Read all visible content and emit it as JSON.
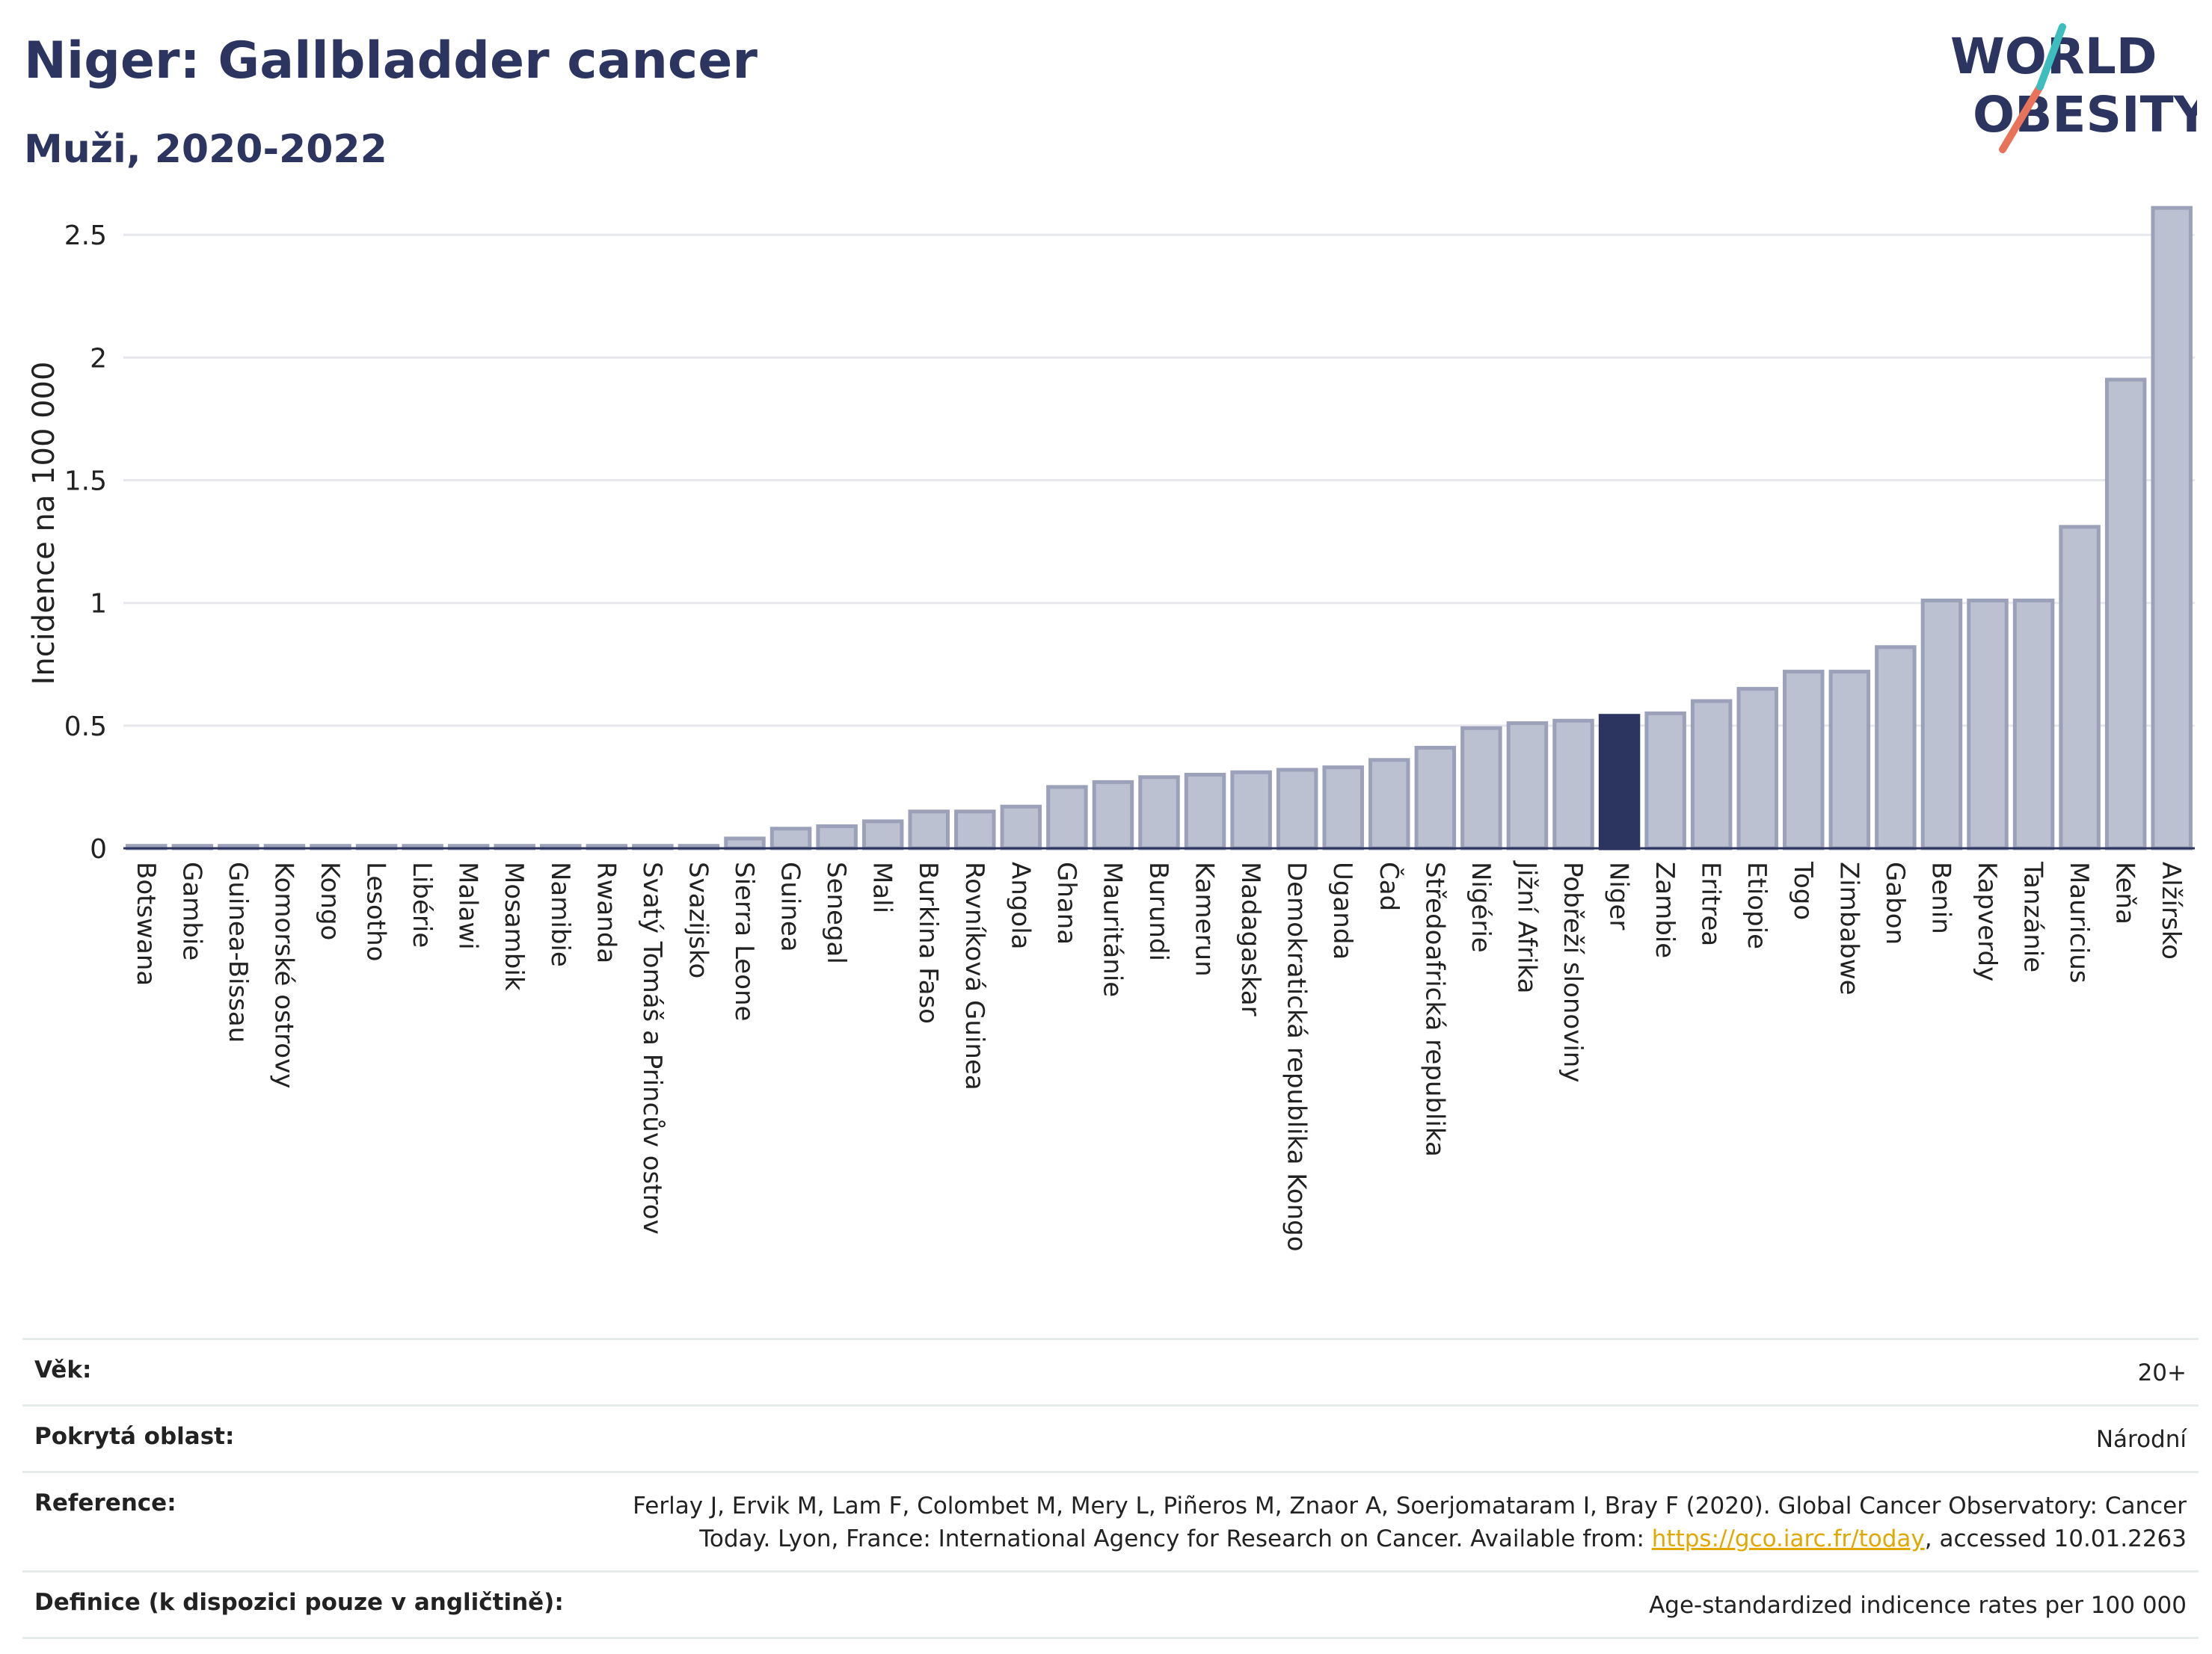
{
  "header": {
    "title": "Niger: Gallbladder cancer",
    "subtitle": "Muži, 2020-2022"
  },
  "logo": {
    "line1": "WORLD",
    "line2": "OBESITY"
  },
  "chart_data": {
    "type": "bar",
    "title": "Niger: Gallbladder cancer",
    "subtitle": "Muži, 2020-2022",
    "xlabel": "",
    "ylabel": "Incidence na 100 000",
    "ylim": [
      0,
      2.65
    ],
    "yticks": [
      0,
      0.5,
      1,
      1.5,
      2,
      2.5
    ],
    "ytick_labels": [
      "0",
      "0.5",
      "1",
      "1.5",
      "2",
      "2.5"
    ],
    "grid": true,
    "highlight": "Niger",
    "colors": {
      "bar": "#bcc1d1",
      "bar_edge": "#9aa1b8",
      "highlight": "#2b3560"
    },
    "categories": [
      "Botswana",
      "Gambie",
      "Guinea-Bissau",
      "Komorské ostrovy",
      "Kongo",
      "Lesotho",
      "Libérie",
      "Malawi",
      "Mosambik",
      "Namibie",
      "Rwanda",
      "Svatý Tomáš a Princův ostrov",
      "Svazijsko",
      "Sierra Leone",
      "Guinea",
      "Senegal",
      "Mali",
      "Burkina Faso",
      "Rovníková Guinea",
      "Angola",
      "Ghana",
      "Mauritánie",
      "Burundi",
      "Kamerun",
      "Madagaskar",
      "Demokratická republika Kongo",
      "Uganda",
      "Čad",
      "Středoafrická republika",
      "Nigérie",
      "Jižní Afrika",
      "Pobřeží slonoviny",
      "Niger",
      "Zambie",
      "Eritrea",
      "Etiopie",
      "Togo",
      "Zimbabwe",
      "Gabon",
      "Benin",
      "Kapverdy",
      "Tanzánie",
      "Mauricius",
      "Keňa",
      "Alžírsko"
    ],
    "values": [
      0.01,
      0.01,
      0.01,
      0.01,
      0.01,
      0.01,
      0.01,
      0.01,
      0.01,
      0.01,
      0.01,
      0.01,
      0.01,
      0.04,
      0.08,
      0.09,
      0.11,
      0.15,
      0.15,
      0.17,
      0.25,
      0.27,
      0.29,
      0.3,
      0.31,
      0.32,
      0.33,
      0.36,
      0.41,
      0.49,
      0.51,
      0.52,
      0.54,
      0.55,
      0.6,
      0.65,
      0.72,
      0.72,
      0.82,
      1.01,
      1.01,
      1.01,
      1.31,
      1.91,
      2.61
    ]
  },
  "info": {
    "age_label": "Věk:",
    "age_value": "20+",
    "coverage_label": "Pokrytá oblast:",
    "coverage_value": "Národní",
    "reference_label": "Reference:",
    "reference_line1": "Ferlay J, Ervik M, Lam F, Colombet M, Mery L, Piñeros M, Znaor A, Soerjomataram I, Bray F (2020). Global Cancer Observatory: Cancer",
    "reference_line2_pre": "Today. Lyon, France: International Agency for Research on Cancer. Available from: ",
    "reference_link": "https://gco.iarc.fr/today",
    "reference_line2_post": ", accessed 10.01.2263",
    "definition_label": "Definice (k dispozici pouze v angličtině):",
    "definition_value": "Age-standardized indicence rates per 100 000"
  }
}
